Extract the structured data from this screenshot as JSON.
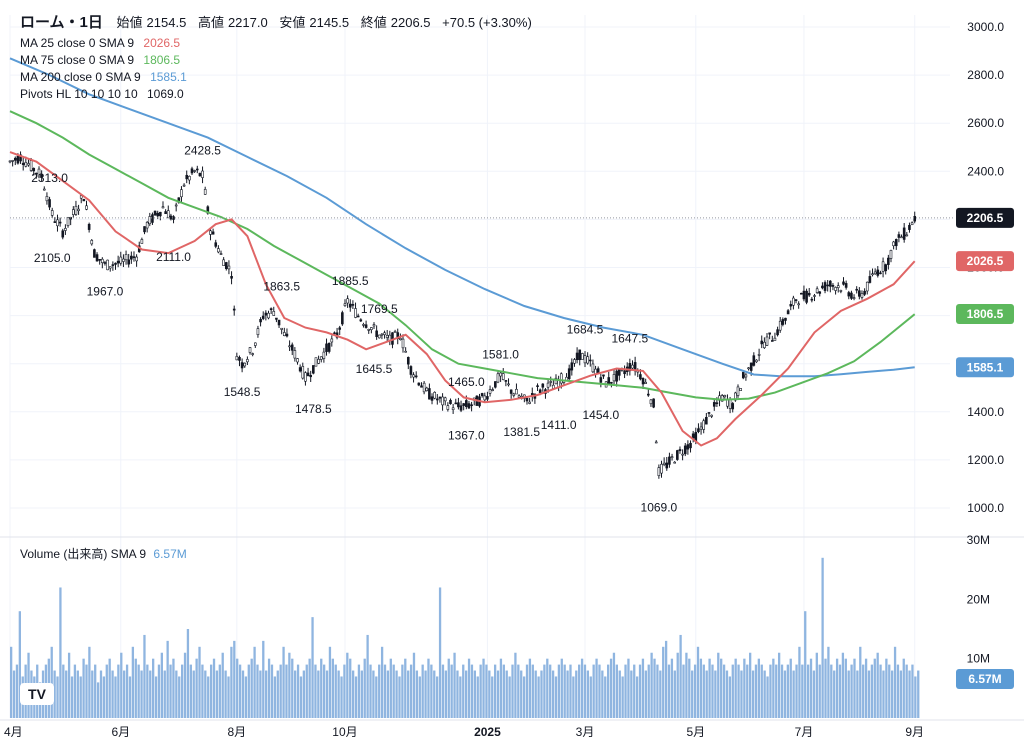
{
  "header": {
    "symbol": "ローム・1日",
    "open_label": "始値",
    "open": "2154.5",
    "high_label": "高値",
    "high": "2217.0",
    "low_label": "安値",
    "low": "2145.5",
    "close_label": "終値",
    "close": "2206.5",
    "change": "+70.5 (+3.30%)"
  },
  "legend": [
    {
      "label": "MA 25 close 0 SMA 9",
      "value": "2026.5",
      "color": "#e06666"
    },
    {
      "label": "MA 75 close 0 SMA 9",
      "value": "1806.5",
      "color": "#5cb85c"
    },
    {
      "label": "MA 200 close 0 SMA 9",
      "value": "1585.1",
      "color": "#5b9bd5"
    },
    {
      "label": "Pivots HL 10 10 10 10",
      "value": "1069.0",
      "color": "#131722"
    }
  ],
  "volume_legend": {
    "label": "Volume (出来高) SMA 9",
    "value": "6.57M",
    "color": "#5b9bd5"
  },
  "logo": "TV",
  "colors": {
    "ma25": "#e06666",
    "ma75": "#5cb85c",
    "ma200": "#5b9bd5",
    "candle": "#131722",
    "volume": "#8fb5e0",
    "grid": "#f0f3fa"
  },
  "chart_data": {
    "type": "candlestick",
    "price_axis": {
      "min": 1000,
      "max": 3000,
      "ticks": [
        "3000.0",
        "2800.0",
        "2600.0",
        "2400.0",
        "2200.0",
        "2000.0",
        "1800.0",
        "1600.0",
        "1400.0",
        "1200.0",
        "1000.0"
      ]
    },
    "volume_axis": {
      "min": 0,
      "max": 30,
      "unit": "M",
      "ticks": [
        "30M",
        "20M",
        "10M"
      ]
    },
    "time_axis": {
      "labels": [
        {
          "label": "4月",
          "day": 0
        },
        {
          "label": "6月",
          "day": 42
        },
        {
          "label": "8月",
          "day": 86
        },
        {
          "label": "10月",
          "day": 127
        },
        {
          "label": "2025",
          "day": 181
        },
        {
          "label": "3月",
          "day": 218
        },
        {
          "label": "5月",
          "day": 260
        },
        {
          "label": "7月",
          "day": 301
        },
        {
          "label": "9月",
          "day": 343
        }
      ],
      "total_days": 345
    },
    "price_badges": [
      {
        "value": "2206.5",
        "price": 2206.5,
        "color": "#131722"
      },
      {
        "value": "2026.5",
        "price": 2026.5,
        "color": "#e06666"
      },
      {
        "value": "1806.5",
        "price": 1806.5,
        "color": "#5cb85c"
      },
      {
        "value": "1585.1",
        "price": 1585.1,
        "color": "#5b9bd5"
      }
    ],
    "volume_badge": {
      "value": "6.57M",
      "volume": 6.57
    },
    "pivots": [
      {
        "label": "2313.0",
        "day": 15,
        "price": 2313,
        "pos": "above"
      },
      {
        "label": "2105.0",
        "day": 16,
        "price": 2105,
        "pos": "below"
      },
      {
        "label": "1967.0",
        "day": 36,
        "price": 1967,
        "pos": "below"
      },
      {
        "label": "2111.0",
        "day": 62,
        "price": 2111,
        "pos": "below"
      },
      {
        "label": "2428.5",
        "day": 73,
        "price": 2428.5,
        "pos": "above"
      },
      {
        "label": "1863.5",
        "day": 103,
        "price": 1863.5,
        "pos": "above"
      },
      {
        "label": "1548.5",
        "day": 88,
        "price": 1548.5,
        "pos": "below"
      },
      {
        "label": "1478.5",
        "day": 115,
        "price": 1478.5,
        "pos": "below"
      },
      {
        "label": "1885.5",
        "day": 129,
        "price": 1885.5,
        "pos": "above"
      },
      {
        "label": "1769.5",
        "day": 140,
        "price": 1769.5,
        "pos": "above"
      },
      {
        "label": "1645.5",
        "day": 138,
        "price": 1645.5,
        "pos": "below"
      },
      {
        "label": "1465.0",
        "day": 173,
        "price": 1465,
        "pos": "above"
      },
      {
        "label": "1581.0",
        "day": 186,
        "price": 1581,
        "pos": "above"
      },
      {
        "label": "1367.0",
        "day": 173,
        "price": 1367,
        "pos": "below"
      },
      {
        "label": "1381.5",
        "day": 194,
        "price": 1381.5,
        "pos": "below"
      },
      {
        "label": "1411.0",
        "day": 208,
        "price": 1411,
        "pos": "below"
      },
      {
        "label": "1684.5",
        "day": 218,
        "price": 1684.5,
        "pos": "above"
      },
      {
        "label": "1647.5",
        "day": 235,
        "price": 1647.5,
        "pos": "above"
      },
      {
        "label": "1454.0",
        "day": 224,
        "price": 1454,
        "pos": "below"
      },
      {
        "label": "1069.0",
        "day": 246,
        "price": 1069,
        "pos": "below"
      }
    ],
    "ma25": [
      [
        0,
        2480
      ],
      [
        10,
        2440
      ],
      [
        20,
        2360
      ],
      [
        30,
        2280
      ],
      [
        40,
        2150
      ],
      [
        50,
        2075
      ],
      [
        60,
        2060
      ],
      [
        70,
        2110
      ],
      [
        78,
        2180
      ],
      [
        84,
        2200
      ],
      [
        90,
        2130
      ],
      [
        97,
        1930
      ],
      [
        104,
        1790
      ],
      [
        112,
        1750
      ],
      [
        120,
        1730
      ],
      [
        128,
        1700
      ],
      [
        135,
        1660
      ],
      [
        145,
        1700
      ],
      [
        150,
        1720
      ],
      [
        158,
        1640
      ],
      [
        165,
        1530
      ],
      [
        172,
        1460
      ],
      [
        180,
        1440
      ],
      [
        190,
        1450
      ],
      [
        200,
        1470
      ],
      [
        210,
        1510
      ],
      [
        220,
        1550
      ],
      [
        230,
        1580
      ],
      [
        240,
        1570
      ],
      [
        247,
        1480
      ],
      [
        255,
        1320
      ],
      [
        262,
        1260
      ],
      [
        268,
        1290
      ],
      [
        275,
        1370
      ],
      [
        285,
        1470
      ],
      [
        295,
        1580
      ],
      [
        305,
        1730
      ],
      [
        315,
        1820
      ],
      [
        325,
        1870
      ],
      [
        335,
        1930
      ],
      [
        343,
        2026
      ]
    ],
    "ma75": [
      [
        0,
        2650
      ],
      [
        10,
        2600
      ],
      [
        20,
        2540
      ],
      [
        30,
        2470
      ],
      [
        40,
        2410
      ],
      [
        50,
        2350
      ],
      [
        60,
        2290
      ],
      [
        70,
        2250
      ],
      [
        80,
        2210
      ],
      [
        90,
        2160
      ],
      [
        100,
        2090
      ],
      [
        110,
        2030
      ],
      [
        120,
        1970
      ],
      [
        130,
        1910
      ],
      [
        140,
        1850
      ],
      [
        150,
        1760
      ],
      [
        160,
        1660
      ],
      [
        170,
        1600
      ],
      [
        180,
        1580
      ],
      [
        190,
        1560
      ],
      [
        200,
        1540
      ],
      [
        210,
        1530
      ],
      [
        220,
        1520
      ],
      [
        230,
        1510
      ],
      [
        240,
        1500
      ],
      [
        250,
        1480
      ],
      [
        260,
        1460
      ],
      [
        270,
        1450
      ],
      [
        280,
        1455
      ],
      [
        290,
        1480
      ],
      [
        300,
        1520
      ],
      [
        310,
        1560
      ],
      [
        320,
        1610
      ],
      [
        330,
        1690
      ],
      [
        343,
        1806
      ]
    ],
    "ma200": [
      [
        0,
        2870
      ],
      [
        15,
        2800
      ],
      [
        30,
        2720
      ],
      [
        45,
        2660
      ],
      [
        60,
        2600
      ],
      [
        75,
        2540
      ],
      [
        90,
        2460
      ],
      [
        105,
        2380
      ],
      [
        120,
        2290
      ],
      [
        135,
        2180
      ],
      [
        150,
        2080
      ],
      [
        165,
        1990
      ],
      [
        180,
        1910
      ],
      [
        195,
        1840
      ],
      [
        210,
        1790
      ],
      [
        225,
        1750
      ],
      [
        240,
        1720
      ],
      [
        255,
        1660
      ],
      [
        270,
        1600
      ],
      [
        282,
        1555
      ],
      [
        292,
        1548
      ],
      [
        305,
        1548
      ],
      [
        315,
        1556
      ],
      [
        325,
        1566
      ],
      [
        335,
        1575
      ],
      [
        343,
        1585
      ]
    ],
    "candles": {
      "description": "daily OHLC bars approximated from price path",
      "path": [
        [
          0,
          2440
        ],
        [
          4,
          2460
        ],
        [
          8,
          2420
        ],
        [
          12,
          2380
        ],
        [
          16,
          2220
        ],
        [
          20,
          2150
        ],
        [
          25,
          2240
        ],
        [
          28,
          2300
        ],
        [
          32,
          2060
        ],
        [
          36,
          2010
        ],
        [
          42,
          2020
        ],
        [
          48,
          2050
        ],
        [
          52,
          2180
        ],
        [
          58,
          2250
        ],
        [
          62,
          2200
        ],
        [
          66,
          2350
        ],
        [
          70,
          2400
        ],
        [
          73,
          2380
        ],
        [
          76,
          2160
        ],
        [
          80,
          2050
        ],
        [
          84,
          1980
        ],
        [
          86,
          1640
        ],
        [
          88,
          1600
        ],
        [
          92,
          1660
        ],
        [
          96,
          1800
        ],
        [
          100,
          1820
        ],
        [
          104,
          1720
        ],
        [
          108,
          1640
        ],
        [
          112,
          1540
        ],
        [
          116,
          1600
        ],
        [
          120,
          1660
        ],
        [
          124,
          1720
        ],
        [
          128,
          1860
        ],
        [
          132,
          1800
        ],
        [
          136,
          1760
        ],
        [
          140,
          1720
        ],
        [
          144,
          1700
        ],
        [
          148,
          1720
        ],
        [
          152,
          1580
        ],
        [
          158,
          1480
        ],
        [
          164,
          1440
        ],
        [
          170,
          1420
        ],
        [
          175,
          1430
        ],
        [
          180,
          1460
        ],
        [
          186,
          1550
        ],
        [
          190,
          1490
        ],
        [
          196,
          1440
        ],
        [
          200,
          1490
        ],
        [
          206,
          1510
        ],
        [
          212,
          1560
        ],
        [
          216,
          1640
        ],
        [
          220,
          1600
        ],
        [
          226,
          1520
        ],
        [
          232,
          1560
        ],
        [
          236,
          1600
        ],
        [
          240,
          1540
        ],
        [
          244,
          1430
        ],
        [
          246,
          1150
        ],
        [
          250,
          1190
        ],
        [
          254,
          1230
        ],
        [
          258,
          1270
        ],
        [
          262,
          1330
        ],
        [
          266,
          1400
        ],
        [
          270,
          1460
        ],
        [
          274,
          1430
        ],
        [
          278,
          1540
        ],
        [
          282,
          1610
        ],
        [
          286,
          1690
        ],
        [
          290,
          1720
        ],
        [
          294,
          1790
        ],
        [
          298,
          1870
        ],
        [
          302,
          1880
        ],
        [
          306,
          1900
        ],
        [
          310,
          1930
        ],
        [
          316,
          1920
        ],
        [
          320,
          1880
        ],
        [
          324,
          1900
        ],
        [
          328,
          1980
        ],
        [
          332,
          2010
        ],
        [
          336,
          2110
        ],
        [
          340,
          2150
        ],
        [
          343,
          2206
        ]
      ]
    },
    "volume": [
      12,
      8,
      9,
      18,
      7,
      9,
      11,
      8,
      7,
      9,
      6,
      8,
      9,
      10,
      12,
      8,
      7,
      22,
      9,
      8,
      11,
      7,
      9,
      8,
      7,
      10,
      9,
      12,
      8,
      9,
      6,
      8,
      7,
      9,
      10,
      8,
      7,
      9,
      11,
      8,
      9,
      7,
      12,
      10,
      9,
      8,
      14,
      9,
      8,
      10,
      7,
      9,
      11,
      8,
      13,
      9,
      10,
      8,
      7,
      9,
      11,
      15,
      9,
      8,
      10,
      12,
      9,
      8,
      7,
      9,
      10,
      8,
      9,
      11,
      8,
      7,
      12,
      13,
      10,
      9,
      8,
      7,
      9,
      10,
      12,
      9,
      8,
      13,
      8,
      10,
      9,
      7,
      8,
      9,
      12,
      9,
      11,
      10,
      8,
      9,
      7,
      8,
      9,
      10,
      17,
      9,
      8,
      10,
      9,
      8,
      12,
      10,
      9,
      8,
      7,
      9,
      11,
      10,
      8,
      7,
      9,
      8,
      10,
      14,
      9,
      8,
      7,
      9,
      12,
      9,
      8,
      10,
      9,
      8,
      7,
      9,
      10,
      8,
      9,
      11,
      8,
      7,
      9,
      8,
      10,
      9,
      8,
      7,
      22,
      9,
      8,
      10,
      9,
      11,
      8,
      7,
      9,
      8,
      10,
      9,
      8,
      7,
      9,
      10,
      9,
      8,
      7,
      9,
      8,
      10,
      9,
      8,
      7,
      9,
      11,
      9,
      8,
      7,
      9,
      10,
      9,
      8,
      7,
      8,
      9,
      10,
      9,
      8,
      7,
      9,
      10,
      9,
      8,
      9,
      7,
      8,
      9,
      10,
      9,
      8,
      7,
      9,
      10,
      9,
      8,
      7,
      9,
      10,
      11,
      9,
      8,
      7,
      9,
      10,
      8,
      9,
      7,
      9,
      10,
      8,
      9,
      11,
      10,
      9,
      8,
      12,
      13,
      9,
      10,
      8,
      11,
      14,
      9,
      11,
      10,
      8,
      9,
      12,
      10,
      9,
      8,
      10,
      9,
      8,
      11,
      10,
      9,
      8,
      7,
      9,
      10,
      9,
      8,
      10,
      9,
      11,
      8,
      9,
      10,
      9,
      8,
      7,
      9,
      10,
      9,
      11,
      9,
      8,
      9,
      10,
      8,
      9,
      12,
      9,
      18,
      9,
      10,
      8,
      11,
      9,
      27,
      10,
      12,
      9,
      8,
      10,
      9,
      11,
      10,
      8,
      9,
      10,
      8,
      12,
      9,
      10,
      8,
      9,
      10,
      11,
      9,
      8,
      10,
      9,
      8,
      12,
      9,
      8,
      10,
      9,
      8,
      9,
      7,
      8
    ]
  }
}
